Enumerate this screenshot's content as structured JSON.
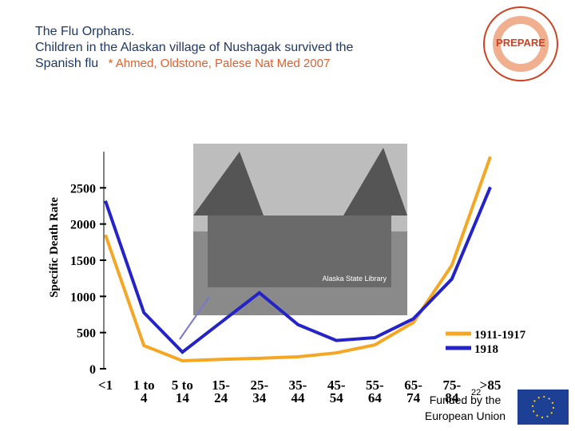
{
  "header": {
    "title": "The Flu Orphans.",
    "subtitle": "Children in the Alaskan village of Nushagak survived the Spanish flu",
    "citation": "* Ahmed, Oldstone, Palese Nat Med 2007"
  },
  "logo": {
    "text": "PREPARE"
  },
  "photo": {
    "caption": "Alaska State Library"
  },
  "chart_data": {
    "type": "line",
    "y_label": "Specific Death Rate",
    "categories": [
      "<1",
      "1 to 4",
      "5 to 14",
      "15-24",
      "25-34",
      "35-44",
      "45-54",
      "55-64",
      "65-74",
      "75-84",
      ">85"
    ],
    "series": [
      {
        "name": "1911-1917",
        "color": "#f5a623",
        "values": [
          1850,
          320,
          110,
          130,
          145,
          165,
          220,
          330,
          640,
          1430,
          2930
        ]
      },
      {
        "name": "1918",
        "color": "#2323c8",
        "values": [
          2320,
          775,
          230,
          640,
          1050,
          610,
          390,
          430,
          690,
          1240,
          2510
        ]
      }
    ],
    "ylim": [
      0,
      3000
    ],
    "yticks": [
      0,
      500,
      1000,
      1500,
      2000,
      2500
    ],
    "legend": "lower right"
  },
  "footer": {
    "page_number": "22",
    "funding": "Funded by the European Union"
  }
}
